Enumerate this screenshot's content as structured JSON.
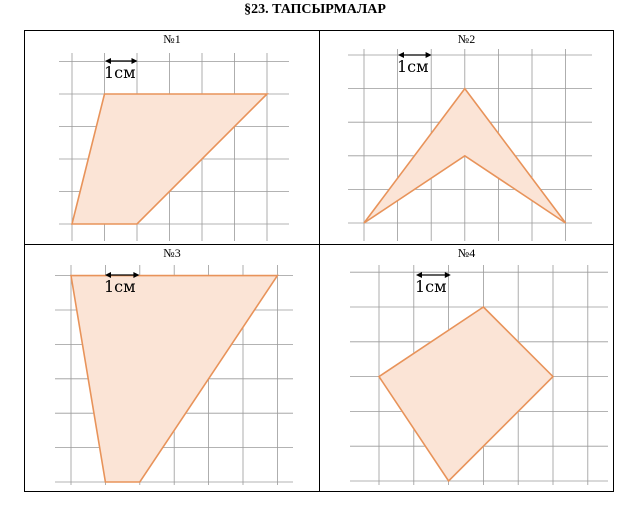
{
  "title": "§23. ТАПСЫРМАЛАР",
  "scale_label": "1см",
  "colors": {
    "fill": "#fbe4d6",
    "stroke": "#e8935a",
    "grid": "#9a9a9a"
  },
  "tasks": [
    {
      "label": "№1",
      "polygon": [
        [
          0,
          0
        ],
        [
          1,
          4
        ],
        [
          6,
          4
        ],
        [
          2,
          0
        ]
      ]
    },
    {
      "label": "№2",
      "polygon": [
        [
          0,
          0
        ],
        [
          3,
          4
        ],
        [
          6,
          0
        ],
        [
          3,
          2
        ]
      ]
    },
    {
      "label": "№3",
      "polygon": [
        [
          0,
          6
        ],
        [
          6,
          6
        ],
        [
          2,
          0
        ],
        [
          1,
          0
        ]
      ]
    },
    {
      "label": "№4",
      "polygon": [
        [
          3,
          5
        ],
        [
          5,
          3
        ],
        [
          2,
          0
        ],
        [
          0,
          3
        ]
      ]
    }
  ]
}
